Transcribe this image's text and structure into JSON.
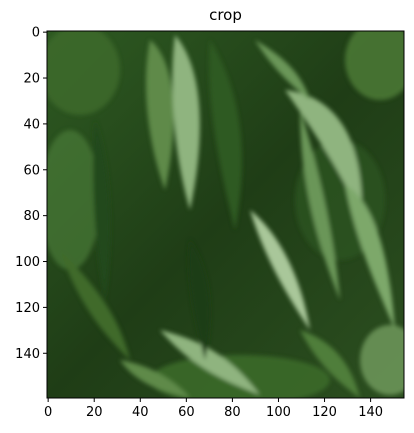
{
  "title": "crop",
  "image": {
    "width": 155,
    "height": 160,
    "colors": {
      "dark_green": "#1f3d16",
      "mid_green": "#3f6b2c",
      "leaf_green": "#5e8a4a",
      "light_leaf": "#8fb47f",
      "pale_leaf": "#a9c79a"
    }
  },
  "x_axis": {
    "ticks": [
      0,
      20,
      40,
      60,
      80,
      100,
      120,
      140
    ],
    "labels": [
      "0",
      "20",
      "40",
      "60",
      "80",
      "100",
      "120",
      "140"
    ]
  },
  "y_axis": {
    "ticks": [
      0,
      20,
      40,
      60,
      80,
      100,
      120,
      140
    ],
    "labels": [
      "0",
      "20",
      "40",
      "60",
      "80",
      "100",
      "120",
      "140"
    ]
  }
}
